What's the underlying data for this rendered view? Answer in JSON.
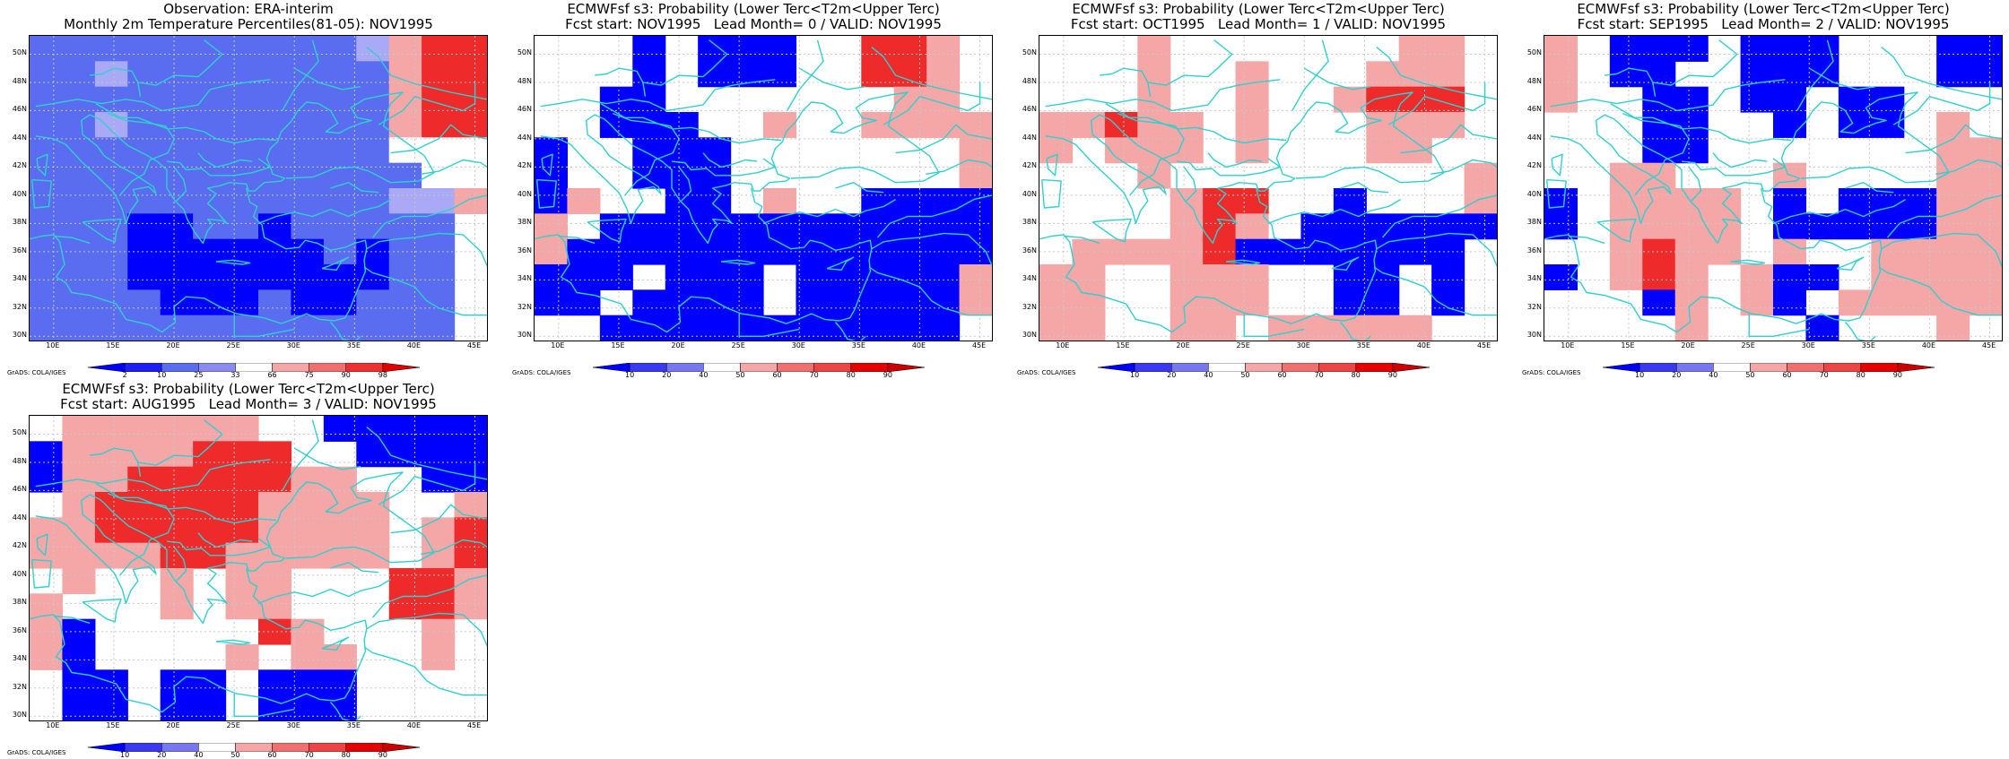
{
  "lat_labels": [
    "50N",
    "48N",
    "46N",
    "44N",
    "42N",
    "40N",
    "38N",
    "36N",
    "34N",
    "32N",
    "30N"
  ],
  "lon_labels": [
    "10E",
    "15E",
    "20E",
    "25E",
    "30E",
    "35E",
    "40E",
    "45E"
  ],
  "credit": "GrADS: COLA/IGES",
  "colors": {
    "coast": "#2fd0d0",
    "grid": "#c8c8c8",
    "blue_dark": "#0000ff",
    "blue_mid": "#5a6cf0",
    "blue_light": "#a9a9f5",
    "red_light": "#f5a6a6",
    "red_mid": "#f07070",
    "red_dark": "#ee2a2a"
  },
  "palettes": {
    "obs": {
      "labels": [
        "2",
        "10",
        "25",
        "33",
        "66",
        "75",
        "90",
        "98"
      ],
      "colors": [
        "#0000ff",
        "#1e1ef8",
        "#5a6cf0",
        "#8a8af0",
        "#ffffff",
        "#f5a6a6",
        "#f07070",
        "#ee3030",
        "#e00000"
      ]
    },
    "prob": {
      "labels": [
        "10",
        "20",
        "40",
        "50",
        "60",
        "70",
        "80",
        "90"
      ],
      "colors": [
        "#0000ff",
        "#3a3af5",
        "#7777f0",
        "#ffffff",
        "#f5a6a6",
        "#f07070",
        "#ee4444",
        "#e60000",
        "#cc0000"
      ]
    }
  },
  "panels": [
    {
      "id": "obs",
      "title_line1": "Observation: ERA-interim",
      "title_line2": "Monthly 2m Temperature Percentiles(81-05): NOV1995",
      "palette": "obs",
      "grid": [
        "MMMMMMMMMMLrRR",
        "MMLMMMMMMMMrRR",
        "MMMMMMMMMMMrRR",
        "MMLMMMMMMMMrRR",
        "MMMMMMMMMMMwww",
        "MMMMMMMMMMMMww",
        "MMMMMMMMMMMLLr",
        "MMMBBMMBMMMMM.",
        "MMMBBBBBBMBMM.",
        "MMMBBBBBBBBMM.",
        "MMMMBBBMBBMMM.",
        "MMMMMMMMMMMMM."
      ]
    },
    {
      "id": "lead0",
      "title_line1": "ECMWFsf s3: Probability (Lower Terc<T2m<Upper Terc)",
      "title_line2": "Fcst start: NOV1995   Lead Month= 0 / VALID: NOV1995",
      "palette": "prob",
      "grid": [
        "...B.BBB..RRr.",
        "...B.BBB..RRr.",
        "..BB.......rr.",
        "..BBB..r..rrrr",
        "B..BBB.......r",
        "B..BBB.......r",
        "Br..BB.r..BBBB",
        "r.BBBBBBBBBBBB",
        "rBBBBBBBBBBBBB",
        "BBB.BBB.BBBBBr",
        "BB.BBBB.BBBBBr",
        "..BBBBBBBBBBB."
      ]
    },
    {
      "id": "lead1",
      "title_line1": "ECMWFsf s3: Probability (Lower Terc<T2m<Upper Terc)",
      "title_line2": "Fcst start: OCT1995   Lead Month= 1 / VALID: NOV1995",
      "palette": "prob",
      "grid": [
        "...r.......rr.",
        "...r..r...rrr.",
        "...r..r..rRRR.",
        "rrRrr.r...rrr.",
        "r.rrr.r...rr..",
        "...r.........r",
        "....rRR..B...r",
        "....rRr.BBBBBB",
        ".rrrrRBBBBBBB.",
        "rr..rrr..BB.B.",
        "rr..rrr..BB.B.",
        "rr..rr.rrrrr.."
      ]
    },
    {
      "id": "lead2",
      "title_line1": "ECMWFsf s3: Probability (Lower Terc<T2m<Upper Terc)",
      "title_line2": "Fcst start: SEP1995   Lead Month= 2 / VALID: NOV1995",
      "palette": "prob",
      "grid": [
        "r.BBB.BBB...BB",
        "r.BB..BBB...BB",
        "r..BB.BB.BB...",
        "...BB..B.BB.r.",
        "...BB.......rr",
        "..rr...r....rr",
        "B.rrrr.B.BBBrr",
        "B.rrrr.BBBBBrr",
        "..rRrr.r..rrrr",
        "B.rRr.rBB.rrrr",
        "...Br.rB.rrrrr",
        "....r...B...r."
      ]
    },
    {
      "id": "lead3",
      "title_line1": "ECMWFsf s3: Probability (Lower Terc<T2m<Upper Terc)",
      "title_line2": "Fcst start: AUG1995   Lead Month= 3 / VALID: NOV1995",
      "palette": "prob",
      "grid": [
        ".rrrrrr..BBBBB",
        "BrrrrRRR..BBBB",
        "BrrRRRRRrr..BB",
        ".rRRRRRrrrr..r",
        "rrRRRRRrrrr.rR",
        "rrrrRRrrrrr.rR",
        ".r..r.rr...RRr",
        "r...r.rr...RRr",
        "rB.....Rr...r.",
        "rB....r.rr..r.",
        ".BB.BB.BBB....",
        ".BB.BB.BBB...."
      ]
    }
  ]
}
